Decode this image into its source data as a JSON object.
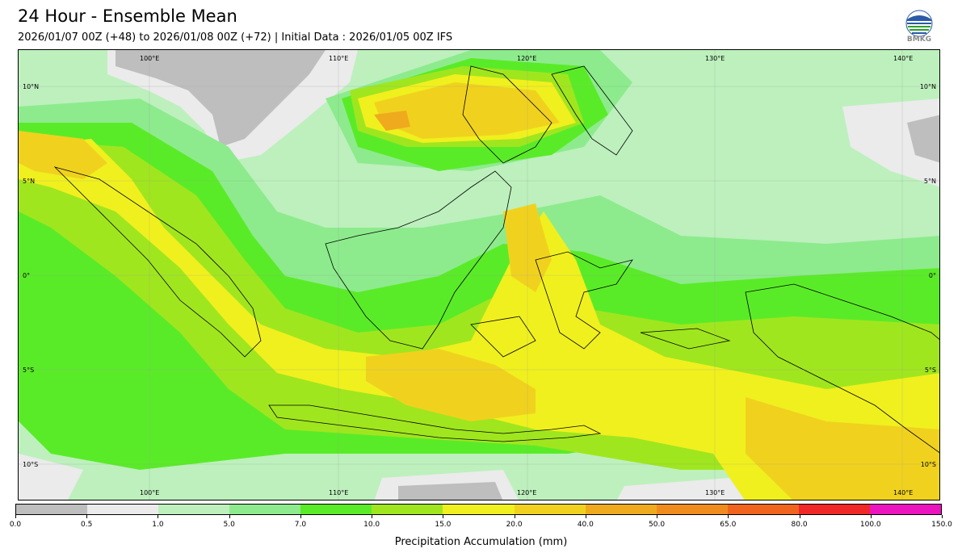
{
  "header": {
    "title": "24 Hour - Ensemble Mean",
    "subtitle": "2026/01/07 00Z (+48) to 2026/01/08 00Z (+72) | Initial Data : 2026/01/05 00Z IFS",
    "logo_text": "BMKG"
  },
  "map": {
    "lon_labels_top": [
      "100°E",
      "110°E",
      "120°E",
      "130°E",
      "140°E"
    ],
    "lon_labels_bottom": [
      "100°E",
      "110°E",
      "120°E",
      "130°E",
      "140°E"
    ],
    "lat_labels_left": [
      "10°N",
      "5°N",
      "0°",
      "5°S",
      "10°S"
    ],
    "lat_labels_right": [
      "10°N",
      "5°N",
      "0°",
      "5°S",
      "10°S"
    ],
    "background_color": "#bdf0bd"
  },
  "colorbar": {
    "label": "Precipitation Accumulation (mm)",
    "ticks": [
      "0.0",
      "0.5",
      "1.0",
      "5.0",
      "7.0",
      "10.0",
      "15.0",
      "20.0",
      "40.0",
      "50.0",
      "65.0",
      "80.0",
      "100.0",
      "150.0"
    ],
    "colors": [
      "#bebebe",
      "#ebebeb",
      "#bdf0bd",
      "#8deb8d",
      "#5aeb28",
      "#a0e61e",
      "#f0f01e",
      "#f0d21e",
      "#f0aa1e",
      "#f08c1e",
      "#f0641e",
      "#f02828",
      "#eb14be"
    ]
  }
}
